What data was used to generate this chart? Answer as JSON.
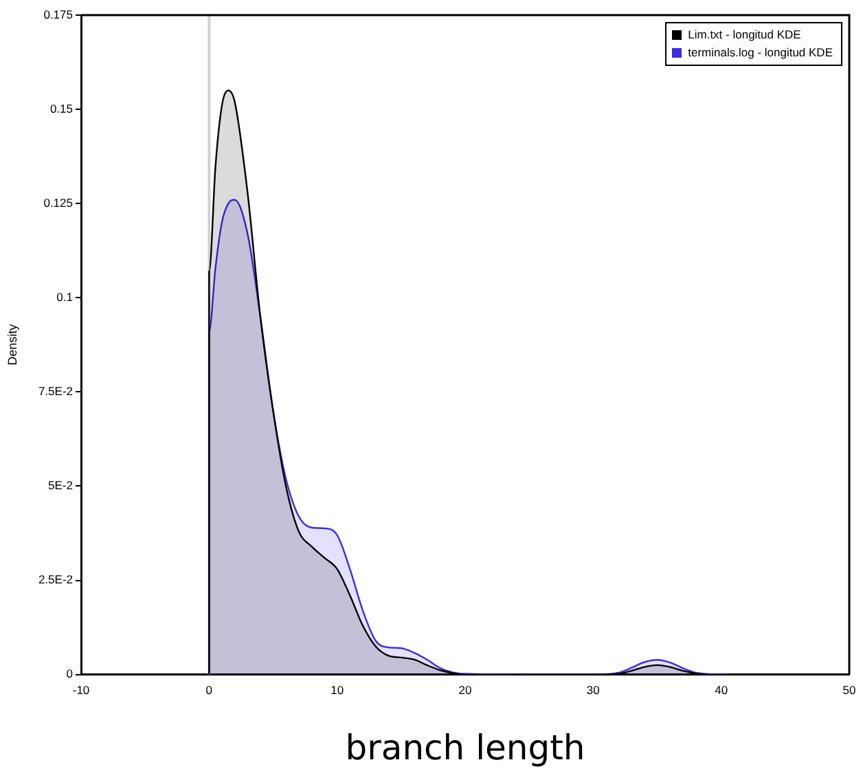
{
  "chart_data": {
    "type": "area",
    "xlabel": "branch length",
    "ylabel": "Density",
    "x": [
      0,
      0,
      0.5,
      1,
      1.5,
      2,
      3,
      4,
      5,
      6,
      7,
      8,
      9,
      10,
      11,
      12,
      13,
      14,
      15,
      16,
      17,
      18,
      19,
      20,
      25,
      30,
      32,
      33,
      34,
      35,
      36,
      37,
      38,
      39,
      40.5
    ],
    "series": [
      {
        "name": "Lim.txt - longitud KDE",
        "color": "#000000",
        "values": [
          0,
          0.107,
          0.135,
          0.151,
          0.155,
          0.152,
          0.128,
          0.095,
          0.07,
          0.05,
          0.038,
          0.034,
          0.031,
          0.028,
          0.021,
          0.013,
          0.0075,
          0.005,
          0.0045,
          0.004,
          0.0025,
          0.0012,
          0.0004,
          0,
          0,
          0,
          0.0002,
          0.001,
          0.002,
          0.0025,
          0.002,
          0.001,
          0.0003,
          0,
          0
        ]
      },
      {
        "name": "terminals.log - longitud KDE",
        "color": "#3b2ee0",
        "values": [
          0,
          0.091,
          0.108,
          0.12,
          0.125,
          0.126,
          0.117,
          0.095,
          0.07,
          0.052,
          0.042,
          0.039,
          0.0388,
          0.037,
          0.028,
          0.017,
          0.009,
          0.0072,
          0.007,
          0.0058,
          0.004,
          0.0018,
          0.0006,
          0.0002,
          0,
          0,
          0.0005,
          0.0018,
          0.0033,
          0.0039,
          0.0032,
          0.0017,
          0.0005,
          0.0001,
          0
        ]
      }
    ],
    "xlim": [
      -10,
      50
    ],
    "xticks": [
      -10,
      0,
      10,
      20,
      30,
      40,
      50
    ],
    "ylim": [
      0,
      0.175
    ],
    "yticks": [
      0,
      {
        "value": 0.025,
        "label": "2.5E-2"
      },
      {
        "value": 0.05,
        "label": "5E-2"
      },
      {
        "value": 0.075,
        "label": "7.5E-2"
      },
      0.1,
      0.125,
      0.15,
      0.175
    ],
    "ref_lines": [
      {
        "axis": "x",
        "value": 0,
        "color": "#d0d0d0"
      }
    ],
    "legend": "top right"
  }
}
